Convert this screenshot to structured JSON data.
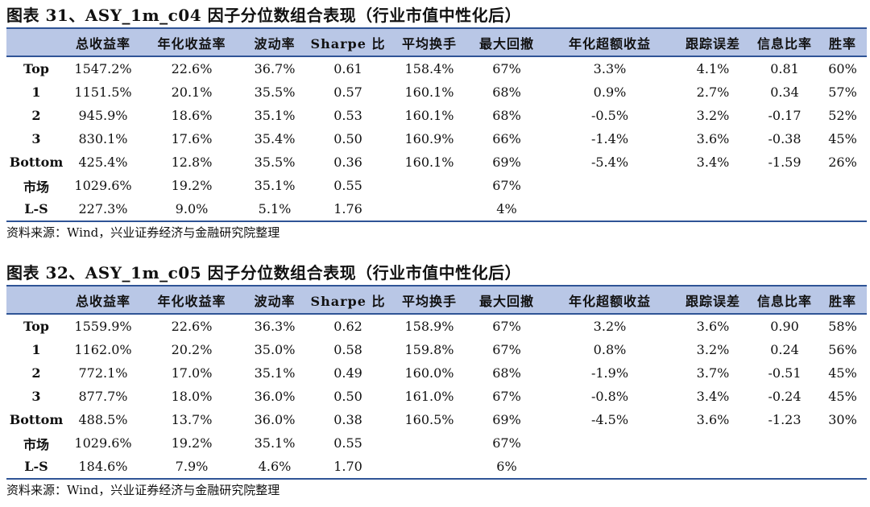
{
  "tables": [
    {
      "title": "图表 31、ASY_1m_c04 因子分位数组合表现（行业市值中性化后）",
      "headers": [
        "",
        "总收益率",
        "年化收益率",
        "波动率",
        "Sharpe 比",
        "平均换手",
        "最大回撤",
        "年化超额收益",
        "跟踪误差",
        "信息比率",
        "胜率"
      ],
      "rows": [
        [
          "Top",
          "1547.2%",
          "22.6%",
          "36.7%",
          "0.61",
          "158.4%",
          "67%",
          "3.3%",
          "4.1%",
          "0.81",
          "60%"
        ],
        [
          "1",
          "1151.5%",
          "20.1%",
          "35.5%",
          "0.57",
          "160.1%",
          "68%",
          "0.9%",
          "2.7%",
          "0.34",
          "57%"
        ],
        [
          "2",
          "945.9%",
          "18.6%",
          "35.1%",
          "0.53",
          "160.1%",
          "68%",
          "-0.5%",
          "3.2%",
          "-0.17",
          "52%"
        ],
        [
          "3",
          "830.1%",
          "17.6%",
          "35.4%",
          "0.50",
          "160.9%",
          "66%",
          "-1.4%",
          "3.6%",
          "-0.38",
          "45%"
        ],
        [
          "Bottom",
          "425.4%",
          "12.8%",
          "35.5%",
          "0.36",
          "160.1%",
          "69%",
          "-5.4%",
          "3.4%",
          "-1.59",
          "26%"
        ],
        [
          "市场",
          "1029.6%",
          "19.2%",
          "35.1%",
          "0.55",
          "",
          "67%",
          "",
          "",
          "",
          ""
        ],
        [
          "L-S",
          "227.3%",
          "9.0%",
          "5.1%",
          "1.76",
          "",
          "4%",
          "",
          "",
          "",
          ""
        ]
      ],
      "source": "资料来源：Wind，兴业证券经济与金融研究院整理"
    },
    {
      "title": "图表 32、ASY_1m_c05 因子分位数组合表现（行业市值中性化后）",
      "headers": [
        "",
        "总收益率",
        "年化收益率",
        "波动率",
        "Sharpe 比",
        "平均换手",
        "最大回撤",
        "年化超额收益",
        "跟踪误差",
        "信息比率",
        "胜率"
      ],
      "rows": [
        [
          "Top",
          "1559.9%",
          "22.6%",
          "36.3%",
          "0.62",
          "158.9%",
          "67%",
          "3.2%",
          "3.6%",
          "0.90",
          "58%"
        ],
        [
          "1",
          "1162.0%",
          "20.2%",
          "35.0%",
          "0.58",
          "159.8%",
          "67%",
          "0.8%",
          "3.2%",
          "0.24",
          "56%"
        ],
        [
          "2",
          "772.1%",
          "17.0%",
          "35.1%",
          "0.49",
          "160.0%",
          "68%",
          "-1.9%",
          "3.7%",
          "-0.51",
          "45%"
        ],
        [
          "3",
          "877.7%",
          "18.0%",
          "36.0%",
          "0.50",
          "161.0%",
          "67%",
          "-0.8%",
          "3.4%",
          "-0.24",
          "45%"
        ],
        [
          "Bottom",
          "488.5%",
          "13.7%",
          "36.0%",
          "0.38",
          "160.5%",
          "69%",
          "-4.5%",
          "3.6%",
          "-1.23",
          "30%"
        ],
        [
          "市场",
          "1029.6%",
          "19.2%",
          "35.1%",
          "0.55",
          "",
          "67%",
          "",
          "",
          "",
          ""
        ],
        [
          "L-S",
          "184.6%",
          "7.9%",
          "4.6%",
          "1.70",
          "",
          "6%",
          "",
          "",
          "",
          ""
        ]
      ],
      "source": "资料来源：Wind，兴业证券经济与金融研究院整理"
    }
  ]
}
